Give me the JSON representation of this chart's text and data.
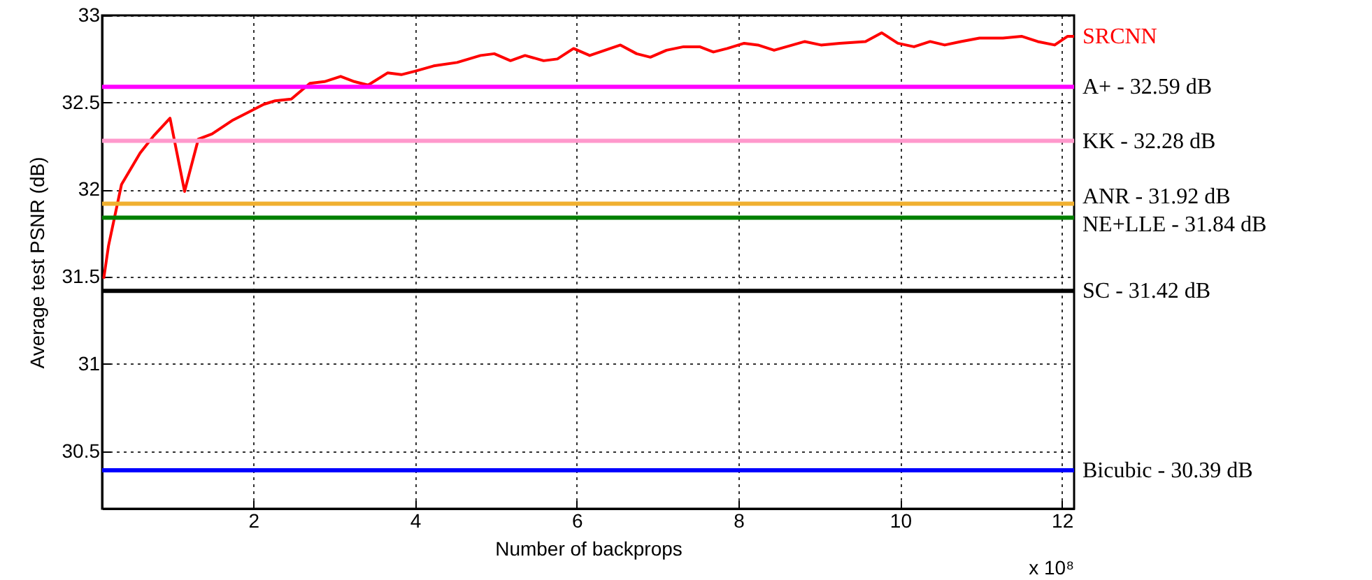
{
  "chart_data": {
    "type": "line",
    "xlabel": "Number of backprops",
    "ylabel": "Average test PSNR (dB)",
    "annotations": [
      "x 10⁸"
    ],
    "xlim": [
      0.13,
      12.15
    ],
    "xticks": [
      2,
      4,
      6,
      8,
      10,
      12
    ],
    "ylim": [
      30.17,
      33
    ],
    "yticks": [
      30.5,
      31,
      31.5,
      32,
      32.5,
      33
    ],
    "grid": true,
    "line_style": "solid",
    "x": [
      0.15,
      0.21,
      0.37,
      0.6,
      0.77,
      0.97,
      1.15,
      1.32,
      1.49,
      1.75,
      1.92,
      2.13,
      2.27,
      2.47,
      2.7,
      2.88,
      3.08,
      3.25,
      3.42,
      3.66,
      3.83,
      4.0,
      4.23,
      4.52,
      4.81,
      4.98,
      5.18,
      5.36,
      5.59,
      5.76,
      5.96,
      6.16,
      6.54,
      6.74,
      6.91,
      7.11,
      7.32,
      7.52,
      7.69,
      7.86,
      8.07,
      8.24,
      8.44,
      8.82,
      9.02,
      9.25,
      9.57,
      9.77,
      9.97,
      10.17,
      10.37,
      10.55,
      10.75,
      10.98,
      11.27,
      11.5,
      11.7,
      11.91,
      12.07,
      12.15
    ],
    "series": [
      {
        "name": "SRCNN",
        "color": "#ff0000",
        "values": [
          31.49,
          31.68,
          32.03,
          32.21,
          32.31,
          32.41,
          31.99,
          32.29,
          32.32,
          32.4,
          32.44,
          32.49,
          32.51,
          32.52,
          32.61,
          32.62,
          32.65,
          32.62,
          32.6,
          32.67,
          32.66,
          32.68,
          32.71,
          32.73,
          32.77,
          32.78,
          32.74,
          32.77,
          32.74,
          32.75,
          32.81,
          32.77,
          32.83,
          32.78,
          32.76,
          32.8,
          32.82,
          32.82,
          32.79,
          32.81,
          32.84,
          32.83,
          32.8,
          32.85,
          32.83,
          32.84,
          32.85,
          32.9,
          32.84,
          32.82,
          32.85,
          32.83,
          32.85,
          32.87,
          32.87,
          32.88,
          32.85,
          32.83,
          32.88,
          32.88
        ]
      }
    ],
    "ref_lines": [
      {
        "axis": "y",
        "value": 32.59,
        "label": "A+ - 32.59 dB",
        "color": "#ff00ff"
      },
      {
        "axis": "y",
        "value": 32.28,
        "label": "KK - 32.28 dB",
        "color": "#ff99cc"
      },
      {
        "axis": "y",
        "value": 31.92,
        "label": "ANR - 31.92 dB",
        "color": "#f0b030"
      },
      {
        "axis": "y",
        "value": 31.84,
        "label": "NE+LLE - 31.84 dB",
        "color": "#008000"
      },
      {
        "axis": "y",
        "value": 31.42,
        "label": "SC - 31.42 dB",
        "color": "#000000"
      },
      {
        "axis": "y",
        "value": 30.39,
        "label": "Bicubic - 30.39 dB",
        "color": "#0000ff"
      }
    ]
  }
}
